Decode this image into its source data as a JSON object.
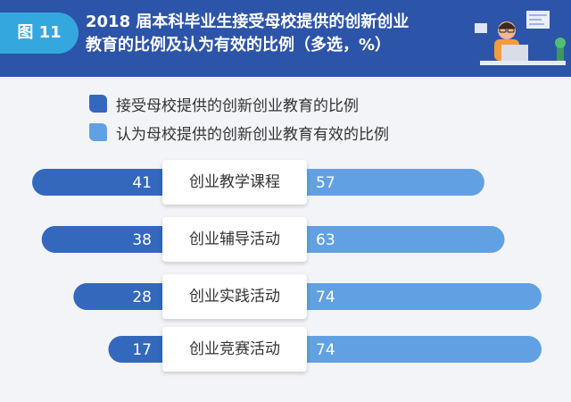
{
  "header": {
    "figure_tag": "图 11",
    "title_line1": "2018 届本科毕业生接受母校提供的创新创业",
    "title_line2": "教育的比例及认为有效的比例（多选，%）"
  },
  "colors": {
    "header_bg": "#2c54a8",
    "tag_bg": "#35a7df",
    "series_accepted": "#3468bd",
    "series_effective": "#61a1e3",
    "background": "#f3f4f8"
  },
  "chart_data": {
    "type": "bar",
    "orientation": "horizontal-diverging",
    "categories": [
      "创业教学课程",
      "创业辅导活动",
      "创业实践活动",
      "创业竞赛活动"
    ],
    "series": [
      {
        "name": "接受母校提供的创新创业教育的比例",
        "values": [
          41,
          38,
          28,
          17
        ]
      },
      {
        "name": "认为母校提供的创新创业教育有效的比例",
        "values": [
          57,
          63,
          74,
          74
        ]
      }
    ],
    "legend_position": "top-left",
    "grid": false
  }
}
